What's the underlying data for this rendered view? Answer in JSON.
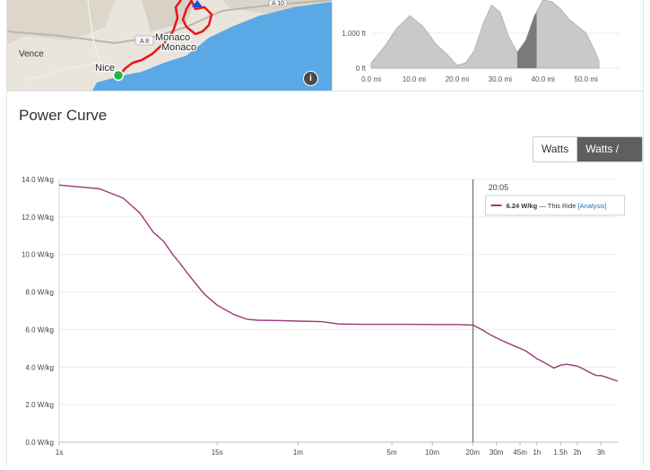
{
  "map": {
    "labels": {
      "vence": "Vence",
      "nice": "Nice",
      "monaco_1": "Monaco",
      "monaco_2": "Monaco",
      "road_a8": "A 8",
      "road_a10": "A 10"
    },
    "info_icon": "info-icon",
    "colors": {
      "sea": "#5aa9e6",
      "land": "#e9e4dc",
      "route": "#e8141c",
      "start": "#27b341"
    }
  },
  "elevation": {
    "y_ticks": [
      "1,000 ft",
      "0 ft"
    ],
    "x_ticks": [
      "0.0 mi",
      "10.0 mi",
      "20.0 mi",
      "30.0 mi",
      "40.0 mi",
      "50.0 mi"
    ],
    "profile_mi": [
      0,
      3,
      6,
      9,
      12,
      15,
      18,
      20,
      22,
      24,
      26,
      28,
      30,
      32,
      34,
      36,
      38,
      40,
      42,
      44,
      46,
      48,
      50,
      52,
      53
    ],
    "profile_ft": [
      150,
      600,
      1150,
      1500,
      1200,
      700,
      350,
      80,
      150,
      500,
      1250,
      1800,
      1600,
      900,
      450,
      800,
      1500,
      1950,
      1900,
      1700,
      1400,
      1200,
      1000,
      500,
      200
    ],
    "highlight_range_mi": [
      34,
      38.5
    ],
    "ylim_ft": [
      0,
      2000
    ]
  },
  "power_curve": {
    "title": "Power Curve",
    "toggle": {
      "watts": "Watts",
      "watts_per_kg": "Watts / KG",
      "active": "watts_per_kg"
    },
    "tooltip": {
      "time": "20:05",
      "value": "6.24 W/kg",
      "separator": "—",
      "series": "This Ride",
      "link_open": "[",
      "link": "Analysis",
      "link_close": "]"
    },
    "series_color": "#9b3a78",
    "cursor_time_s": 1205
  },
  "chart_data": {
    "type": "line",
    "xscale": "log",
    "xlabel": "",
    "ylabel": "",
    "y_tick_labels": [
      "0.0 W/kg",
      "2.0 W/kg",
      "4.0 W/kg",
      "6.0 W/kg",
      "8.0 W/kg",
      "10.0 W/kg",
      "12.0 W/kg",
      "14.0 W/kg"
    ],
    "y_tick_values": [
      0,
      2,
      4,
      6,
      8,
      10,
      12,
      14
    ],
    "ylim": [
      0,
      14
    ],
    "x_tick_labels": [
      "1s",
      "15s",
      "1m",
      "5m",
      "10m",
      "20m",
      "30m",
      "45m",
      "1h",
      "1.5h",
      "2h",
      "3h"
    ],
    "x_tick_values_s": [
      1,
      15,
      60,
      300,
      600,
      1200,
      1800,
      2700,
      3600,
      5400,
      7200,
      10800
    ],
    "xlim_s": [
      1,
      14400
    ],
    "series": [
      {
        "name": "This Ride",
        "x_s": [
          1,
          2,
          3,
          4,
          5,
          6,
          7,
          8,
          9,
          10,
          12,
          15,
          20,
          25,
          30,
          45,
          60,
          90,
          120,
          180,
          300,
          400,
          600,
          900,
          1200,
          1400,
          1600,
          1800,
          2000,
          2400,
          2700,
          3000,
          3600,
          4200,
          4800,
          5400,
          6000,
          7200,
          8000,
          9000,
          10000,
          10800,
          12000,
          14400
        ],
        "y": [
          13.7,
          13.5,
          13.0,
          12.2,
          11.2,
          10.7,
          10.0,
          9.5,
          9.0,
          8.6,
          7.9,
          7.3,
          6.8,
          6.55,
          6.5,
          6.48,
          6.45,
          6.42,
          6.3,
          6.28,
          6.28,
          6.28,
          6.27,
          6.27,
          6.24,
          6.0,
          5.75,
          5.55,
          5.4,
          5.15,
          5.0,
          4.85,
          4.45,
          4.2,
          3.95,
          4.1,
          4.15,
          4.05,
          3.9,
          3.7,
          3.55,
          3.55,
          3.45,
          3.25
        ]
      }
    ],
    "grid": true,
    "legend": "none"
  }
}
